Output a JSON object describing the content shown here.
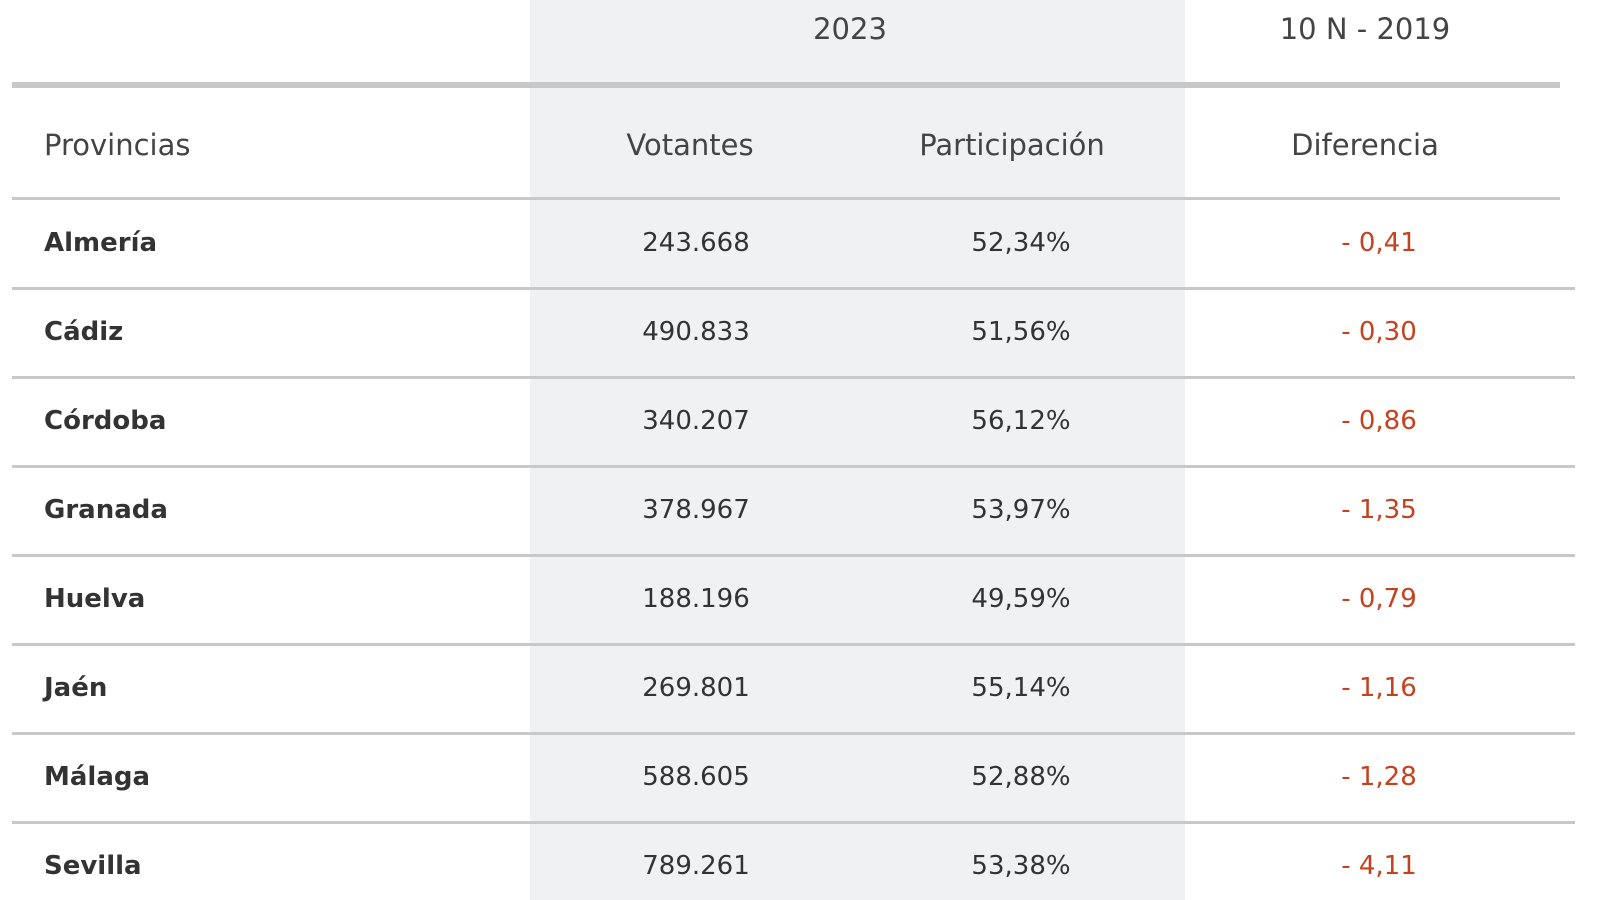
{
  "header": {
    "groups": [
      "2023",
      "10 N - 2019"
    ]
  },
  "table": {
    "columns": [
      "Provincias",
      "Votantes",
      "Participación",
      "Diferencia"
    ],
    "rows": [
      [
        "Almería",
        "243.668",
        "52,34%",
        "- 0,41"
      ],
      [
        "Cádiz",
        "490.833",
        "51,56%",
        "- 0,30"
      ],
      [
        "Córdoba",
        "340.207",
        "56,12%",
        "- 0,86"
      ],
      [
        "Granada",
        "378.967",
        "53,97%",
        "- 1,35"
      ],
      [
        "Huelva",
        "188.196",
        "49,59%",
        "- 0,79"
      ],
      [
        "Jaén",
        "269.801",
        "55,14%",
        "- 1,16"
      ],
      [
        "Málaga",
        "588.605",
        "52,88%",
        "- 1,28"
      ],
      [
        "Sevilla",
        "789.261",
        "53,38%",
        "- 4,11"
      ]
    ]
  }
}
